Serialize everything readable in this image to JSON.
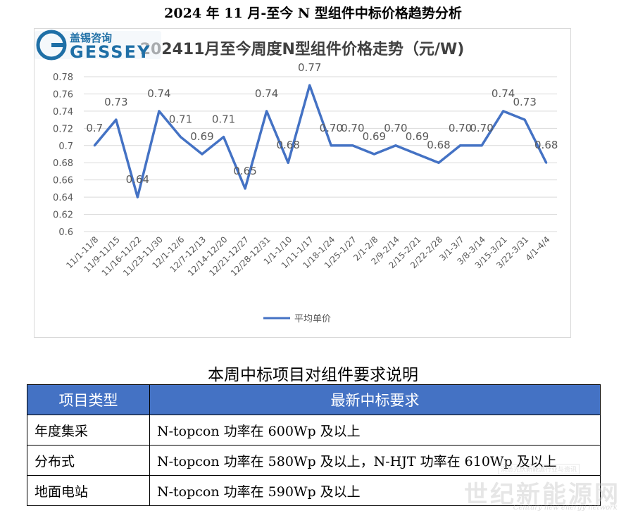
{
  "page": {
    "title": "2024 年 11 月-至今 N 型组件中标价格趋势分析",
    "section_title": "本周中标项目对组件要求说明"
  },
  "logo": {
    "text_cn": "盖锡咨询",
    "text_en": "GESSEY",
    "color": "#1f6fa6"
  },
  "chart_data": {
    "type": "line",
    "title": "202411月至今周度N型组件价格走势（元/W)",
    "categories": [
      "11/1-11/8",
      "11/9-11/15",
      "11/16-11/22",
      "11/23-11/30",
      "12/1-12/6",
      "12/7-12/13",
      "12/14-12/20",
      "12/21-12/27",
      "12/28-12/31",
      "1/1-1/10",
      "1/11-1/17",
      "1/18-1/24",
      "1/25-1/27",
      "2/1-2/8",
      "2/9-2/14",
      "2/15-2/21",
      "2/22-2/28",
      "3/1-3/7",
      "3/8-3/14",
      "3/15-3/21",
      "3/22-3/31",
      "4/1-4/4"
    ],
    "series": [
      {
        "name": "平均单价",
        "color": "#4472c4",
        "values": [
          0.7,
          0.73,
          0.64,
          0.74,
          0.71,
          0.69,
          0.71,
          0.65,
          0.74,
          0.68,
          0.77,
          0.7,
          0.7,
          0.69,
          0.7,
          0.69,
          0.68,
          0.7,
          0.7,
          0.74,
          0.73,
          0.68
        ],
        "labels": [
          "0.7",
          "0.73",
          "0.64",
          "0.74",
          "0.71",
          "0.69",
          "0.71",
          "0.65",
          "0.74",
          "0.68",
          "0.77",
          "0.70",
          "0.70",
          "0.69",
          "0.70",
          "0.69",
          "0.68",
          "0.70",
          "0.70",
          "0.74",
          "0.73",
          "0.68"
        ]
      }
    ],
    "ylim": [
      0.6,
      0.78
    ],
    "yticks": [
      "0.6",
      "0.62",
      "0.64",
      "0.66",
      "0.68",
      "0.7",
      "0.72",
      "0.74",
      "0.76",
      "0.78"
    ],
    "grid": true,
    "legend_position": "bottom"
  },
  "table": {
    "headers": [
      "项目类型",
      "最新中标要求"
    ],
    "rows": [
      [
        "年度集采",
        "N-topcon 功率在 600Wp 及以上"
      ],
      [
        "分布式",
        "N-topcon 功率在 580Wp 及以上，N-HJT 功率在 610Wp 及以上"
      ],
      [
        "地面电站",
        "N-topcon 功率在 590Wp 及以上"
      ]
    ],
    "header_color": "#4472c4"
  },
  "watermark": {
    "title": "世纪新能源网",
    "subtitle": "Century new energy network",
    "tag": "洞悉光伏新能源行业与资讯"
  }
}
